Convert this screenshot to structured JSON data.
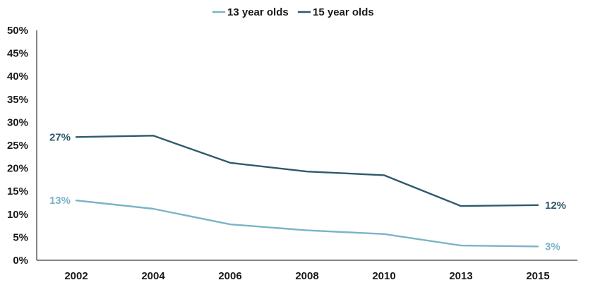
{
  "chart_data": {
    "type": "line",
    "title": "",
    "xlabel": "",
    "ylabel": "",
    "categories": [
      "2002",
      "2004",
      "2006",
      "2008",
      "2010",
      "2013",
      "2015"
    ],
    "ylim": [
      0,
      50
    ],
    "yticks": [
      0,
      5,
      10,
      15,
      20,
      25,
      30,
      35,
      40,
      45,
      50
    ],
    "ytick_labels": [
      "0%",
      "5%",
      "10%",
      "15%",
      "20%",
      "25%",
      "30%",
      "35%",
      "40%",
      "45%",
      "50%"
    ],
    "grid": false,
    "legend_position": "top-center",
    "series": [
      {
        "name": "13 year olds",
        "color": "#7ab4c8",
        "values": [
          13,
          11.2,
          7.8,
          6.5,
          5.7,
          3.2,
          3
        ],
        "start_label": "13%",
        "end_label": "3%"
      },
      {
        "name": "15 year olds",
        "color": "#2e5a6b",
        "values": [
          26.8,
          27.1,
          21.2,
          19.3,
          18.5,
          11.8,
          12
        ],
        "start_label": "27%",
        "end_label": "12%"
      }
    ]
  }
}
